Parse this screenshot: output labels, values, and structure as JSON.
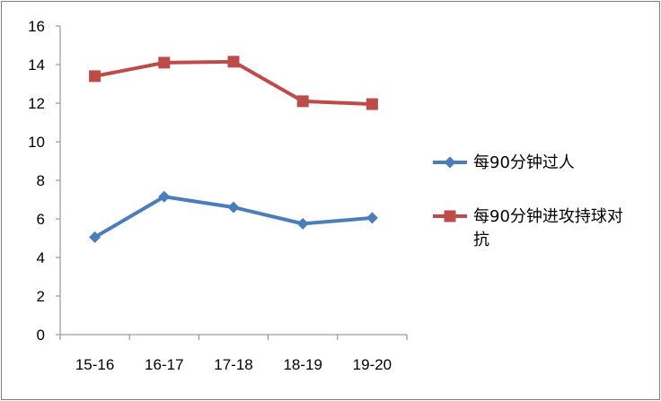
{
  "chart_data": {
    "type": "line",
    "title": "",
    "xlabel": "",
    "ylabel": "",
    "categories": [
      "15-16",
      "16-17",
      "17-18",
      "18-19",
      "19-20"
    ],
    "ylim": [
      0,
      16
    ],
    "yticks": [
      0,
      2,
      4,
      6,
      8,
      10,
      12,
      14,
      16
    ],
    "grid": false,
    "legend_position": "right",
    "series": [
      {
        "name": "每90分钟过人",
        "values": [
          5.05,
          7.15,
          6.6,
          5.75,
          6.05
        ],
        "color": "#4a7ebb",
        "marker": "diamond"
      },
      {
        "name": "每90分钟进攻持球对抗",
        "values": [
          13.4,
          14.1,
          14.15,
          12.1,
          11.95
        ],
        "color": "#be4b48",
        "marker": "square"
      }
    ]
  }
}
